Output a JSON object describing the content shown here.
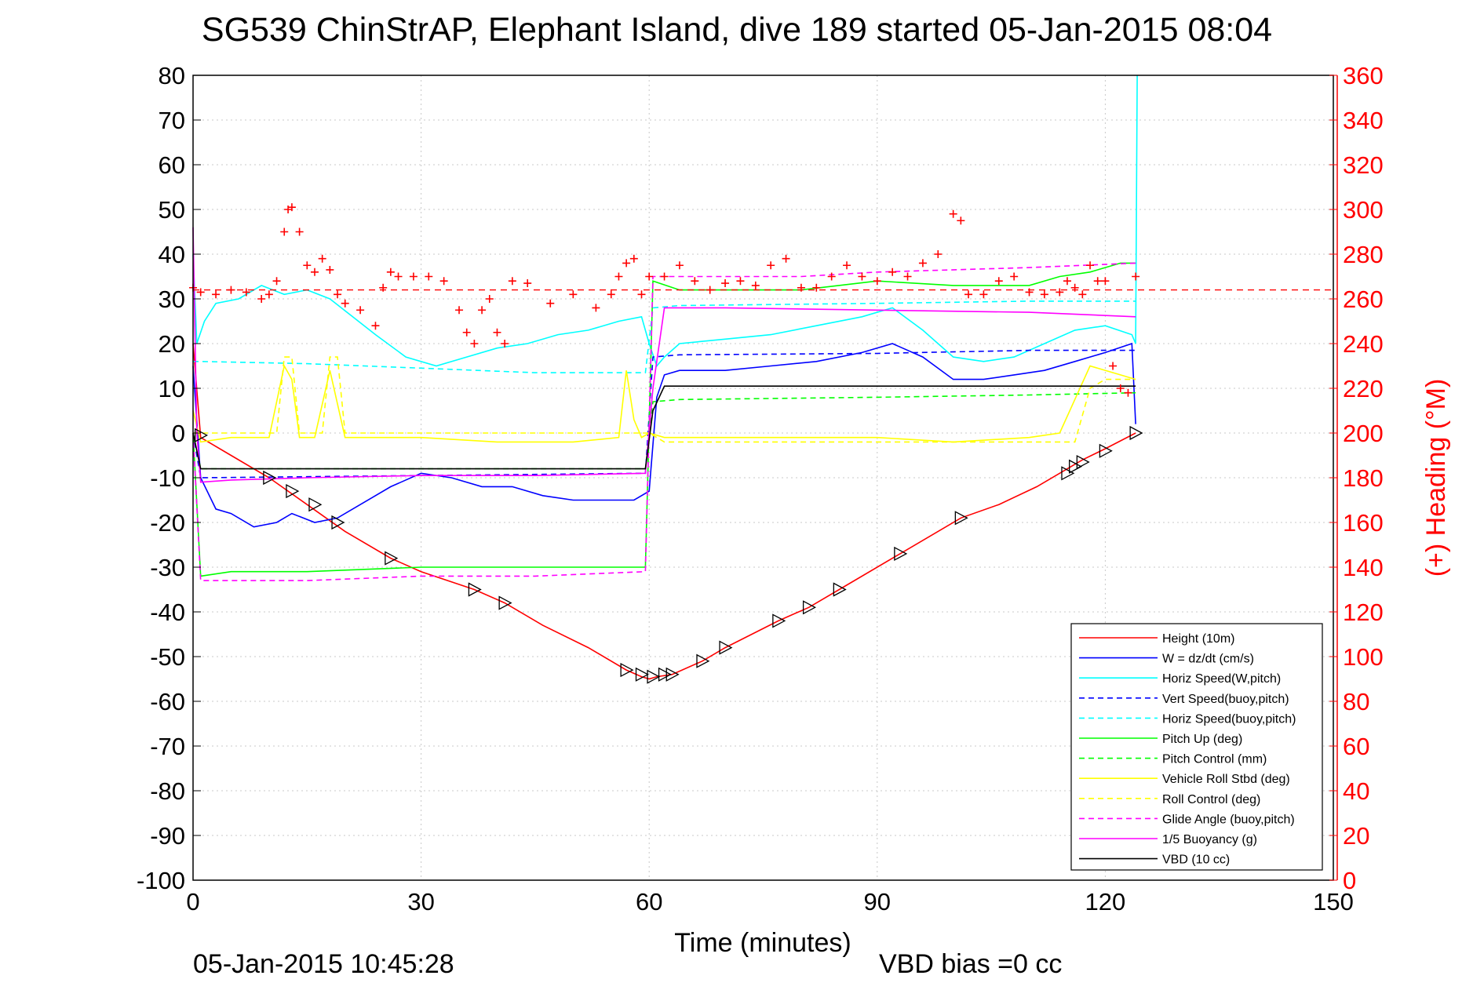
{
  "chart_data": {
    "type": "line",
    "title": "SG539 ChinStrAP, Elephant Island, dive 189 started 05-Jan-2015 08:04",
    "xlabel": "Time (minutes)",
    "ylabel": "",
    "ylabel_right": "(+) Heading (°M)",
    "xlim": [
      0,
      150
    ],
    "ylim": [
      -100,
      80
    ],
    "ylim_right": [
      0,
      360
    ],
    "x_ticks": [
      "0",
      "30",
      "60",
      "90",
      "120",
      "150"
    ],
    "y_ticks": [
      "80",
      "70",
      "60",
      "50",
      "40",
      "30",
      "20",
      "10",
      "0",
      "-10",
      "-20",
      "-30",
      "-40",
      "-50",
      "-60",
      "-70",
      "-80",
      "-90",
      "-100"
    ],
    "y_ticks_right": [
      "360",
      "340",
      "320",
      "300",
      "280",
      "260",
      "240",
      "220",
      "200",
      "180",
      "160",
      "140",
      "120",
      "100",
      "80",
      "60",
      "40",
      "20",
      "0"
    ],
    "grid": true,
    "legend_position": "bottom-right",
    "footer_left": "05-Jan-2015 10:45:28",
    "footer_right": "VBD bias =0 cc",
    "colors": {
      "red": "#ff0000",
      "blue": "#0000ff",
      "cyan": "#00ffff",
      "green": "#00ff00",
      "yellow": "#ffff00",
      "magenta": "#ff00ff",
      "black": "#000000"
    },
    "series": [
      {
        "name": "Height (10m)",
        "color": "#ff0000",
        "dash": false,
        "x": [
          0,
          1,
          5,
          10,
          15,
          20,
          26,
          30,
          37,
          41,
          46,
          52,
          57,
          59,
          60,
          61,
          63,
          67,
          70,
          77,
          81,
          85,
          93,
          101,
          106,
          111,
          114,
          117,
          120,
          124
        ],
        "y": [
          20,
          -1,
          -5,
          -10,
          -16,
          -22,
          -28,
          -31,
          -35,
          -38,
          -43,
          -48,
          -53,
          -54.5,
          -55,
          -54.5,
          -54,
          -51,
          -48,
          -42,
          -39,
          -35,
          -27,
          -19,
          -16,
          -12,
          -9,
          -6,
          -3.5,
          0
        ]
      },
      {
        "name": "W = dz/dt (cm/s)",
        "color": "#0000ff",
        "dash": false,
        "x": [
          0,
          1,
          3,
          5,
          8,
          11,
          13,
          16,
          19,
          22,
          26,
          30,
          34,
          38,
          42,
          46,
          50,
          54,
          58,
          60,
          61,
          62,
          64,
          70,
          76,
          82,
          88,
          92,
          96,
          100,
          104,
          108,
          112,
          116,
          120,
          123.5,
          124
        ],
        "y": [
          15,
          -10,
          -17,
          -18,
          -21,
          -20,
          -18,
          -20,
          -19,
          -16,
          -12,
          -9,
          -10,
          -12,
          -12,
          -14,
          -15,
          -15,
          -15,
          -13,
          8,
          13,
          14,
          14,
          15,
          16,
          18,
          20,
          17,
          12,
          12,
          13,
          14,
          16,
          18,
          20,
          2
        ]
      },
      {
        "name": "Horiz Speed(W,pitch)",
        "color": "#00ffff",
        "dash": false,
        "x": [
          0,
          0.5,
          1.5,
          3,
          6,
          9,
          12,
          15,
          18,
          21,
          24,
          28,
          32,
          36,
          40,
          44,
          48,
          52,
          56,
          59,
          60,
          61,
          62,
          64,
          70,
          76,
          82,
          88,
          92,
          96,
          100,
          104,
          108,
          112,
          116,
          120,
          123.5,
          124,
          124.2
        ],
        "y": [
          40,
          20,
          25,
          29,
          30,
          33,
          31,
          32,
          30,
          26,
          22,
          17,
          15,
          17,
          19,
          20,
          22,
          23,
          25,
          26,
          20,
          15,
          17,
          20,
          21,
          22,
          24,
          26,
          28,
          23,
          17,
          16,
          17,
          20,
          23,
          24,
          22,
          20,
          80
        ]
      },
      {
        "name": "Vert Speed(buoy,pitch)",
        "color": "#0000ff",
        "dash": true,
        "x": [
          0,
          1,
          30,
          59.5,
          60.5,
          64,
          90,
          110,
          124
        ],
        "y": [
          0,
          -10,
          -9.5,
          -9,
          17,
          17.5,
          17.8,
          18.5,
          18.5
        ]
      },
      {
        "name": "Horiz Speed(buoy,pitch)",
        "color": "#00ffff",
        "dash": true,
        "x": [
          0,
          1,
          15,
          30,
          45,
          59.5,
          60.5,
          64,
          90,
          110,
          124
        ],
        "y": [
          16,
          16,
          15.5,
          14.5,
          13.5,
          13.5,
          28,
          28.5,
          29,
          29.5,
          29.5
        ]
      },
      {
        "name": "Pitch Up (deg)",
        "color": "#00ff00",
        "dash": false,
        "x": [
          0,
          1,
          5,
          15,
          30,
          45,
          59.5,
          60.5,
          64,
          80,
          90,
          100,
          110,
          114,
          118,
          122,
          124
        ],
        "y": [
          0,
          -32,
          -31,
          -31,
          -30,
          -30,
          -30,
          34,
          32,
          32,
          34,
          33,
          33,
          35,
          36,
          38,
          38
        ]
      },
      {
        "name": "Pitch Control (mm)",
        "color": "#00ff00",
        "dash": true,
        "x": [
          0,
          1,
          30,
          59.5,
          60.5,
          64,
          90,
          110,
          124
        ],
        "y": [
          0,
          -8,
          -8,
          -8,
          7,
          7.5,
          8,
          8.5,
          9
        ]
      },
      {
        "name": "Vehicle Roll Stbd (deg)",
        "color": "#ffff00",
        "dash": false,
        "x": [
          0,
          1,
          5,
          10,
          12,
          13,
          14,
          16,
          18,
          20,
          30,
          40,
          50,
          56,
          57,
          58,
          59,
          60,
          62,
          70,
          80,
          90,
          100,
          110,
          114,
          118,
          122,
          124
        ],
        "y": [
          5,
          -2,
          -1,
          -1,
          15,
          12,
          -1,
          -1,
          14,
          -1,
          -1,
          -2,
          -2,
          -1,
          14,
          3,
          -1,
          0,
          -1,
          -1,
          -1,
          -1,
          -2,
          -1,
          0,
          15,
          13,
          12
        ]
      },
      {
        "name": "Roll Control (deg)",
        "color": "#ffff00",
        "dash": true,
        "x": [
          0,
          1,
          5,
          11,
          12,
          13,
          14,
          17,
          18,
          19,
          20,
          60,
          62,
          100,
          116,
          118,
          120,
          124
        ],
        "y": [
          0,
          0,
          0,
          0,
          17,
          17,
          0,
          0,
          17,
          17,
          0,
          0,
          -2,
          -2,
          -2,
          10,
          12,
          12
        ]
      },
      {
        "name": "Glide Angle (buoy,pitch)",
        "color": "#ff00ff",
        "dash": true,
        "x": [
          0,
          1,
          5,
          15,
          30,
          45,
          59.5,
          60.5,
          64,
          80,
          90,
          110,
          124
        ],
        "y": [
          0,
          -33,
          -33,
          -33,
          -32,
          -32,
          -31,
          35,
          35,
          35,
          36,
          37,
          38
        ]
      },
      {
        "name": "1/5 Buoyancy (g)",
        "color": "#ff00ff",
        "dash": false,
        "x": [
          0,
          0.5,
          1,
          5,
          15,
          30,
          45,
          59.5,
          60.5,
          62,
          70,
          90,
          110,
          124
        ],
        "y": [
          46,
          0,
          -11,
          -10.5,
          -10,
          -9.5,
          -9.5,
          -9,
          10,
          28,
          28,
          27.5,
          27,
          26
        ]
      },
      {
        "name": "VBD (10 cc)",
        "color": "#000000",
        "dash": false,
        "x": [
          0,
          1,
          30,
          59.5,
          60.5,
          62,
          90,
          124
        ],
        "y": [
          0,
          -8,
          -8,
          -8,
          5,
          10.5,
          10.5,
          10.5
        ]
      }
    ],
    "heading_series": {
      "name": "Heading",
      "color": "#ff0000",
      "marker": "+",
      "axis": "right",
      "reference": 264,
      "x": [
        0,
        1,
        3,
        5,
        7,
        9,
        10,
        11,
        12,
        12.5,
        13,
        14,
        15,
        16,
        17,
        18,
        19,
        20,
        22,
        24,
        25,
        26,
        27,
        29,
        31,
        33,
        35,
        36,
        37,
        38,
        39,
        40,
        41,
        42,
        44,
        47,
        50,
        53,
        55,
        56,
        57,
        58,
        59,
        60,
        62,
        64,
        66,
        68,
        70,
        72,
        74,
        76,
        78,
        80,
        82,
        84,
        86,
        88,
        90,
        92,
        94,
        96,
        98,
        100,
        101,
        102,
        104,
        106,
        108,
        110,
        112,
        114,
        115,
        116,
        117,
        118,
        119,
        120,
        121,
        122,
        123,
        124
      ],
      "y": [
        265,
        263,
        262,
        264,
        263,
        260,
        262,
        268,
        290,
        300,
        301,
        290,
        275,
        272,
        278,
        273,
        262,
        258,
        255,
        248,
        265,
        272,
        270,
        270,
        270,
        268,
        255,
        245,
        240,
        255,
        260,
        245,
        240,
        268,
        267,
        258,
        262,
        256,
        262,
        270,
        276,
        278,
        262,
        270,
        270,
        275,
        268,
        264,
        267,
        268,
        266,
        275,
        278,
        265,
        265,
        270,
        275,
        270,
        268,
        272,
        270,
        276,
        280,
        298,
        295,
        262,
        262,
        268,
        270,
        263,
        262,
        263,
        268,
        265,
        262,
        275,
        268,
        268,
        230,
        220,
        218,
        270
      ]
    },
    "depth_markers": {
      "x": [
        1,
        10,
        13,
        16,
        19,
        26,
        37,
        41,
        57,
        59,
        60.5,
        62,
        63,
        67,
        70,
        77,
        81,
        85,
        93,
        101,
        115,
        116,
        117,
        120,
        124
      ],
      "y": [
        -0.5,
        -10,
        -13,
        -16,
        -20,
        -28,
        -35,
        -38,
        -53,
        -54,
        -54.5,
        -54,
        -54,
        -51,
        -48,
        -42,
        -39,
        -35,
        -27,
        -19,
        -9,
        -7.5,
        -6.5,
        -4,
        0
      ]
    }
  }
}
